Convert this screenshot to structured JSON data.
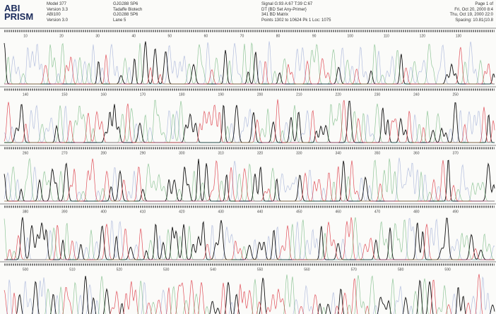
{
  "logo": {
    "line1": "ABI",
    "line2": "PRISM"
  },
  "header": {
    "col1": [
      "Model 377",
      "Version 3.3",
      "ABI100",
      "Version 3.0"
    ],
    "col2": [
      "GJG288 SP6",
      "Tadaffe Biotech",
      "GJG288 SP6",
      "Lane 5"
    ],
    "col3": [
      "Signal G:93 A:67 T:39 C:67",
      "DT {BD Set Any-Primer}",
      "341 BD Matrix",
      "Points 1302 to 10624  Pk 1 Loc: 1075"
    ],
    "col4": [
      "Page 1 of",
      "Fri, Oct 20, 2000 8:4",
      "Thu, Oct 19, 2000 22:0",
      "Spacing: 10.81(10.8"
    ]
  },
  "rows": [
    {
      "positions": [
        10,
        20,
        30,
        40,
        50,
        60,
        70,
        80,
        90,
        100,
        110,
        120,
        130
      ]
    },
    {
      "positions": [
        140,
        150,
        160,
        170,
        180,
        190,
        200,
        210,
        220,
        230,
        240,
        250
      ]
    },
    {
      "positions": [
        260,
        270,
        280,
        290,
        300,
        310,
        320,
        330,
        340,
        350,
        360,
        370
      ]
    },
    {
      "positions": [
        380,
        390,
        400,
        410,
        420,
        430,
        440,
        450,
        460,
        470,
        480,
        490
      ]
    },
    {
      "positions": [
        500,
        510,
        520,
        530,
        540,
        550,
        560,
        570,
        580,
        590
      ]
    }
  ]
}
